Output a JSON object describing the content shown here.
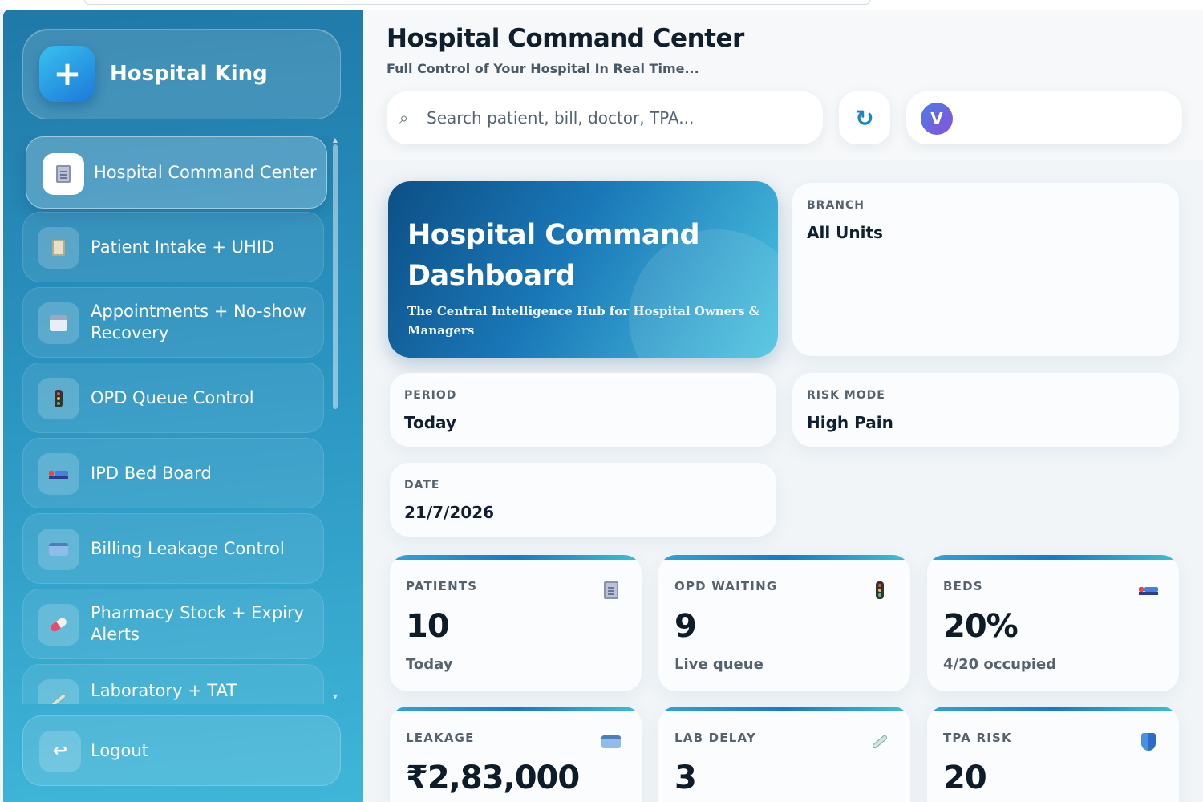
{
  "brand": {
    "name": "Hospital King",
    "logo_glyph": "+"
  },
  "sidebar": {
    "items": [
      {
        "label": "Hospital Command Center",
        "icon": "clipboard-icon",
        "active": true
      },
      {
        "label": "Patient Intake + UHID",
        "icon": "notepad-icon",
        "active": false
      },
      {
        "label": "Appointments + No-show Recovery",
        "icon": "calendar-icon",
        "active": false
      },
      {
        "label": "OPD Queue Control",
        "icon": "traffic-light-icon",
        "active": false
      },
      {
        "label": "IPD Bed Board",
        "icon": "bed-icon",
        "active": false
      },
      {
        "label": "Billing Leakage Control",
        "icon": "credit-card-icon",
        "active": false
      },
      {
        "label": "Pharmacy Stock + Expiry Alerts",
        "icon": "pill-icon",
        "active": false
      },
      {
        "label": "Laboratory + TAT",
        "icon": "syringe-icon",
        "active": false
      }
    ],
    "logout_label": "Logout"
  },
  "header": {
    "title": "Hospital Command Center",
    "subtitle": "Full Control of Your Hospital In Real Time...",
    "search_placeholder": "Search patient, bill, doctor, TPA...",
    "refresh_glyph": "↻",
    "avatar_initial": "V"
  },
  "hero": {
    "title": "Hospital Command Dashboard",
    "subtitle": "The Central Intelligence Hub for Hospital Owners & Managers"
  },
  "filters": {
    "branch": {
      "label": "BRANCH",
      "value": "All Units"
    },
    "period": {
      "label": "PERIOD",
      "value": "Today"
    },
    "risk_mode": {
      "label": "RISK MODE",
      "value": "High Pain"
    },
    "date": {
      "label": "DATE",
      "value": "21/7/2026"
    }
  },
  "stats": [
    {
      "label": "PATIENTS",
      "value": "10",
      "sub": "Today",
      "icon": "clipboard-icon"
    },
    {
      "label": "OPD WAITING",
      "value": "9",
      "sub": "Live queue",
      "icon": "traffic-light-icon"
    },
    {
      "label": "BEDS",
      "value": "20%",
      "sub": "4/20 occupied",
      "icon": "bed-icon"
    },
    {
      "label": "LEAKAGE",
      "value": "₹2,83,000",
      "sub": "",
      "icon": "credit-card-icon"
    },
    {
      "label": "LAB DELAY",
      "value": "3",
      "sub": "",
      "icon": "syringe-icon"
    },
    {
      "label": "TPA RISK",
      "value": "20",
      "sub": "",
      "icon": "shield-icon"
    }
  ],
  "colors": {
    "sidebar_top": "#2079a8",
    "sidebar_bottom": "#3fb6d8",
    "accent": "#1a86c8",
    "hero_start": "#0d4f86",
    "hero_end": "#4cc4e0"
  }
}
